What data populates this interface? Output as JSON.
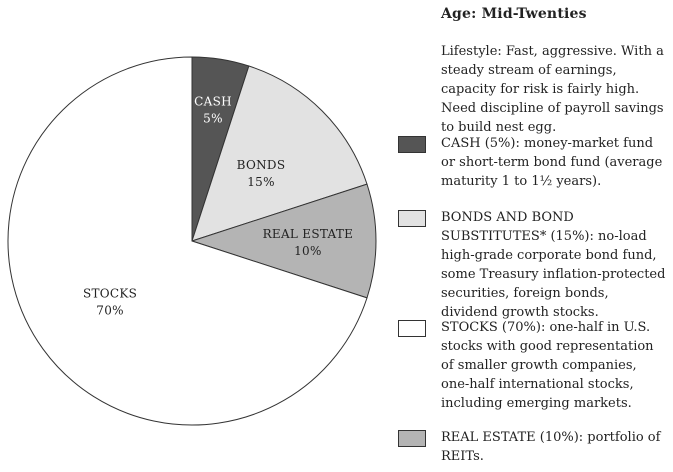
{
  "chart_data": {
    "type": "pie",
    "slices": [
      {
        "label": "CASH",
        "pct_label": "5%",
        "value": 5,
        "color": "#555555",
        "label_style": "light"
      },
      {
        "label": "BONDS",
        "pct_label": "15%",
        "value": 15,
        "color": "#e2e2e2",
        "label_style": "dark"
      },
      {
        "label": "REAL ESTATE",
        "pct_label": "10%",
        "value": 10,
        "color": "#b4b4b4",
        "label_style": "dark"
      },
      {
        "label": "STOCKS",
        "pct_label": "70%",
        "value": 70,
        "color": "#ffffff",
        "label_style": "dark"
      }
    ],
    "start": "12 o'clock",
    "direction": "clockwise"
  },
  "panel": {
    "title": "Age: Mid-Twenties",
    "lifestyle": "Lifestyle: Fast, aggressive. With a steady stream of earnings, capacity for risk is fairly high. Need discipline of payroll savings to build nest egg."
  },
  "legend": [
    {
      "text": "CASH (5%): money-market fund or short-term bond fund (average maturity 1 to 1½ years).",
      "color": "#555555"
    },
    {
      "text": "BONDS AND BOND SUBSTITUTES* (15%): no-load high-grade corporate bond fund, some Treasury inflation-protected securities, foreign bonds, dividend growth stocks.",
      "color": "#e2e2e2"
    },
    {
      "text": "STOCKS (70%): one-half in U.S. stocks with good representation of smaller growth companies, one-half international stocks, including emerging markets.",
      "color": "#ffffff"
    },
    {
      "text": "REAL ESTATE (10%): portfolio of REITs.",
      "color": "#b4b4b4"
    }
  ]
}
